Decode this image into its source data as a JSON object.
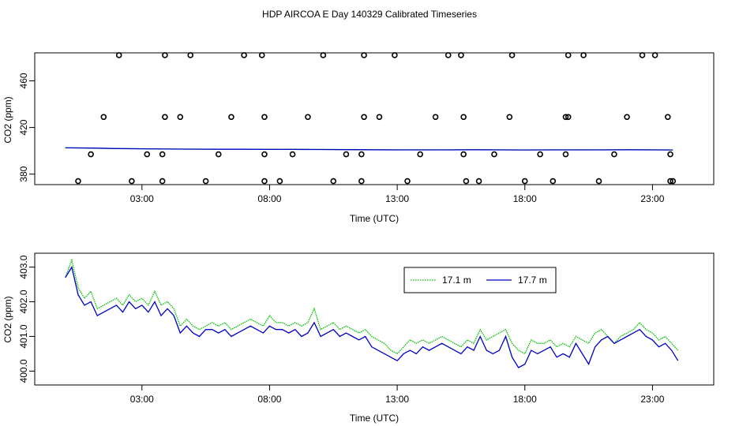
{
  "figure_title": "HDP AIRCOA E  Day 140329  Calibrated Timeseries",
  "colors": {
    "series_17_1": "#00c000",
    "series_17_7": "#0000c8",
    "axis": "#000000"
  },
  "chart_data": [
    {
      "type": "scatter",
      "title": "",
      "xlabel": "Time (UTC)",
      "ylabel": "CO2 (ppm)",
      "xlim": [
        -1.2,
        25.4
      ],
      "ylim": [
        371,
        484
      ],
      "x_ticks": [
        3,
        8,
        13,
        18,
        23
      ],
      "x_tick_labels": [
        "03:00",
        "08:00",
        "13:00",
        "18:00",
        "23:00"
      ],
      "y_ticks": [
        380,
        420,
        460
      ],
      "y_tick_labels": [
        "380",
        "420",
        "460"
      ],
      "outliers": {
        "x": [
          0.5,
          1.0,
          1.5,
          2.1,
          2.6,
          3.2,
          3.8,
          3.8,
          3.9,
          3.9,
          4.5,
          4.9,
          5.5,
          6.0,
          6.5,
          7.0,
          7.7,
          7.8,
          7.8,
          7.8,
          8.4,
          8.9,
          9.5,
          10.1,
          10.5,
          11.0,
          11.6,
          11.6,
          11.7,
          11.7,
          12.3,
          12.9,
          13.4,
          13.9,
          14.5,
          15.0,
          15.5,
          15.6,
          15.6,
          15.7,
          16.2,
          16.8,
          17.4,
          17.5,
          18.0,
          18.6,
          19.1,
          19.6,
          19.6,
          19.7,
          19.7,
          20.3,
          20.9,
          21.5,
          22.0,
          22.6,
          23.1,
          23.6,
          23.7,
          23.7,
          23.8
        ],
        "y": [
          374,
          397,
          429,
          482,
          374,
          397,
          374,
          397,
          429,
          482,
          429,
          482,
          374,
          397,
          429,
          482,
          482,
          429,
          397,
          374,
          374,
          397,
          429,
          482,
          374,
          397,
          374,
          397,
          429,
          482,
          429,
          482,
          374,
          397,
          429,
          482,
          482,
          429,
          397,
          374,
          374,
          397,
          429,
          482,
          374,
          397,
          374,
          397,
          429,
          482,
          429,
          482,
          374,
          397,
          429,
          482,
          482,
          429,
          397,
          374,
          374
        ]
      },
      "series": [
        {
          "name": "17.1 m",
          "x": [
            0,
            1,
            2,
            3,
            4,
            5,
            6,
            7,
            8,
            9,
            10,
            11,
            12,
            13,
            14,
            15,
            16,
            17,
            18,
            19,
            20,
            21,
            22,
            23,
            23.8
          ],
          "values": [
            402.6,
            402.4,
            402.0,
            401.8,
            401.6,
            401.5,
            401.4,
            401.4,
            401.3,
            401.3,
            401.2,
            401.1,
            401.0,
            400.9,
            400.9,
            400.9,
            401.0,
            400.9,
            400.8,
            400.9,
            400.9,
            400.9,
            401.0,
            400.9,
            400.8
          ]
        },
        {
          "name": "17.7 m",
          "x": [
            0,
            1,
            2,
            3,
            4,
            5,
            6,
            7,
            8,
            9,
            10,
            11,
            12,
            13,
            14,
            15,
            16,
            17,
            18,
            19,
            20,
            21,
            22,
            23,
            23.8
          ],
          "values": [
            402.5,
            402.3,
            401.9,
            401.7,
            401.5,
            401.4,
            401.3,
            401.3,
            401.2,
            401.2,
            401.1,
            401.0,
            400.9,
            400.8,
            400.8,
            400.8,
            400.9,
            400.8,
            400.7,
            400.8,
            400.8,
            400.8,
            400.9,
            400.8,
            400.7
          ]
        }
      ]
    },
    {
      "type": "line",
      "title": "",
      "xlabel": "Time (UTC)",
      "ylabel": "CO2 (ppm)",
      "xlim": [
        -1.2,
        25.4
      ],
      "ylim": [
        399.6,
        403.4
      ],
      "x_ticks": [
        3,
        8,
        13,
        18,
        23
      ],
      "x_tick_labels": [
        "03:00",
        "08:00",
        "13:00",
        "18:00",
        "23:00"
      ],
      "y_ticks": [
        400.0,
        401.0,
        402.0,
        403.0
      ],
      "y_tick_labels": [
        "400.0",
        "401.0",
        "402.0",
        "403.0"
      ],
      "legend": {
        "position": "top-right",
        "entries": [
          "17.1 m",
          "17.7 m"
        ]
      },
      "series": [
        {
          "name": "17.1 m",
          "x": [
            0.0,
            0.25,
            0.5,
            0.75,
            1.0,
            1.25,
            1.5,
            1.75,
            2.0,
            2.25,
            2.5,
            2.75,
            3.0,
            3.25,
            3.5,
            3.75,
            4.0,
            4.25,
            4.5,
            4.75,
            5.0,
            5.25,
            5.5,
            5.75,
            6.0,
            6.25,
            6.5,
            6.75,
            7.0,
            7.25,
            7.5,
            7.75,
            8.0,
            8.25,
            8.5,
            8.75,
            9.0,
            9.25,
            9.5,
            9.75,
            10.0,
            10.25,
            10.5,
            10.75,
            11.0,
            11.25,
            11.5,
            11.75,
            12.0,
            12.25,
            12.5,
            12.75,
            13.0,
            13.25,
            13.5,
            13.75,
            14.0,
            14.25,
            14.5,
            14.75,
            15.0,
            15.25,
            15.5,
            15.75,
            16.0,
            16.25,
            16.5,
            16.75,
            17.0,
            17.25,
            17.5,
            17.75,
            18.0,
            18.25,
            18.5,
            18.75,
            19.0,
            19.25,
            19.5,
            19.75,
            20.0,
            20.25,
            20.5,
            20.75,
            21.0,
            21.25,
            21.5,
            21.75,
            22.0,
            22.25,
            22.5,
            22.75,
            23.0,
            23.25,
            23.5,
            23.75,
            24.0
          ],
          "values": [
            402.7,
            403.2,
            402.4,
            402.1,
            402.3,
            401.8,
            401.9,
            402.0,
            402.1,
            401.9,
            402.2,
            402.0,
            402.1,
            401.9,
            402.3,
            401.9,
            402.0,
            401.8,
            401.3,
            401.5,
            401.3,
            401.2,
            401.3,
            401.4,
            401.3,
            401.4,
            401.2,
            401.3,
            401.4,
            401.5,
            401.4,
            401.3,
            401.6,
            401.4,
            401.4,
            401.3,
            401.4,
            401.3,
            401.4,
            401.8,
            401.2,
            401.3,
            401.4,
            401.2,
            401.3,
            401.2,
            401.1,
            401.2,
            401.0,
            400.9,
            400.8,
            400.6,
            400.5,
            400.7,
            400.9,
            400.8,
            400.9,
            400.8,
            400.9,
            401.0,
            400.9,
            400.8,
            400.7,
            400.9,
            400.8,
            401.2,
            400.9,
            401.0,
            401.1,
            401.2,
            400.8,
            400.6,
            400.5,
            400.9,
            400.8,
            400.8,
            400.9,
            400.7,
            400.8,
            400.7,
            401.0,
            400.9,
            400.8,
            401.1,
            401.2,
            401.0,
            400.8,
            401.0,
            401.1,
            401.2,
            401.4,
            401.2,
            401.1,
            400.9,
            401.0,
            400.8,
            400.6
          ]
        },
        {
          "name": "17.7 m",
          "x": [
            0.0,
            0.25,
            0.5,
            0.75,
            1.0,
            1.25,
            1.5,
            1.75,
            2.0,
            2.25,
            2.5,
            2.75,
            3.0,
            3.25,
            3.5,
            3.75,
            4.0,
            4.25,
            4.5,
            4.75,
            5.0,
            5.25,
            5.5,
            5.75,
            6.0,
            6.25,
            6.5,
            6.75,
            7.0,
            7.25,
            7.5,
            7.75,
            8.0,
            8.25,
            8.5,
            8.75,
            9.0,
            9.25,
            9.5,
            9.75,
            10.0,
            10.25,
            10.5,
            10.75,
            11.0,
            11.25,
            11.5,
            11.75,
            12.0,
            12.25,
            12.5,
            12.75,
            13.0,
            13.25,
            13.5,
            13.75,
            14.0,
            14.25,
            14.5,
            14.75,
            15.0,
            15.25,
            15.5,
            15.75,
            16.0,
            16.25,
            16.5,
            16.75,
            17.0,
            17.25,
            17.5,
            17.75,
            18.0,
            18.25,
            18.5,
            18.75,
            19.0,
            19.25,
            19.5,
            19.75,
            20.0,
            20.25,
            20.5,
            20.75,
            21.0,
            21.25,
            21.5,
            21.75,
            22.0,
            22.25,
            22.5,
            22.75,
            23.0,
            23.25,
            23.5,
            23.75,
            24.0
          ],
          "values": [
            402.7,
            403.0,
            402.2,
            401.9,
            402.0,
            401.6,
            401.7,
            401.8,
            401.9,
            401.7,
            402.0,
            401.8,
            401.9,
            401.7,
            402.0,
            401.6,
            401.8,
            401.6,
            401.1,
            401.3,
            401.1,
            401.0,
            401.2,
            401.2,
            401.1,
            401.2,
            401.0,
            401.1,
            401.2,
            401.3,
            401.2,
            401.1,
            401.3,
            401.2,
            401.2,
            401.1,
            401.2,
            401.0,
            401.1,
            401.4,
            401.0,
            401.1,
            401.2,
            401.0,
            401.1,
            401.0,
            400.9,
            401.0,
            400.7,
            400.6,
            400.5,
            400.4,
            400.3,
            400.5,
            400.6,
            400.5,
            400.7,
            400.6,
            400.7,
            400.8,
            400.7,
            400.6,
            400.5,
            400.7,
            400.6,
            401.0,
            400.6,
            400.5,
            400.6,
            401.0,
            400.4,
            400.1,
            400.2,
            400.6,
            400.5,
            400.6,
            400.7,
            400.4,
            400.5,
            400.4,
            400.8,
            400.5,
            400.2,
            400.7,
            400.9,
            401.0,
            400.8,
            400.9,
            401.0,
            401.1,
            401.2,
            401.0,
            400.9,
            400.7,
            400.8,
            400.6,
            400.3
          ]
        }
      ]
    }
  ]
}
